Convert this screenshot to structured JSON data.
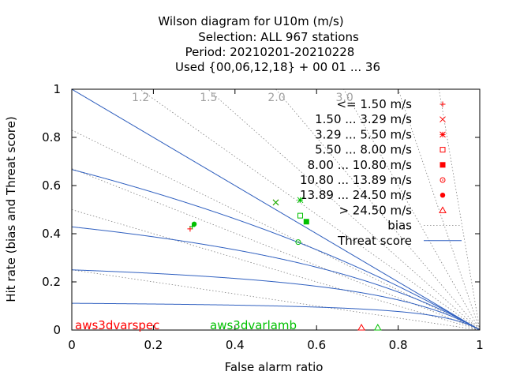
{
  "chart_data": {
    "type": "scatter",
    "title_lines": [
      "Wilson diagram  for U10m (m/s)",
      "Selection: ALL    967 stations",
      "Period: 20210201-20210228",
      "Used {00,06,12,18} + 00 01 ... 36"
    ],
    "xlabel": "False alarm ratio",
    "ylabel": "Hit rate (bias and Threat score)",
    "xlim": [
      0,
      1
    ],
    "ylim": [
      0,
      1
    ],
    "x_ticks": [
      "0",
      "0.2",
      "0.4",
      "0.6",
      "0.8",
      "1"
    ],
    "y_ticks": [
      "0",
      "0.2",
      "0.4",
      "0.6",
      "0.8",
      "1"
    ],
    "bias_values": [
      0.25,
      0.5,
      0.67,
      0.83,
      1.0,
      1.2,
      1.5,
      2.0,
      3.0,
      5.0,
      10.0
    ],
    "bias_labels": [
      "1.2",
      "1.5",
      "2.0",
      "3.0"
    ],
    "threat_score_values": [
      0.1,
      0.2,
      0.3,
      0.4,
      0.5,
      0.6,
      0.7
    ],
    "legend_position": "top-right",
    "legend": [
      {
        "label": "<= 1.50 m/s",
        "marker": "plus"
      },
      {
        "label": "1.50 ... 3.29 m/s",
        "marker": "cross"
      },
      {
        "label": "3.29 ... 5.50 m/s",
        "marker": "star"
      },
      {
        "label": "5.50 ... 8.00 m/s",
        "marker": "square-open"
      },
      {
        "label": "8.00 ... 10.80 m/s",
        "marker": "square-filled"
      },
      {
        "label": "10.80 ... 13.89 m/s",
        "marker": "circle-open"
      },
      {
        "label": "13.89 ... 24.50 m/s",
        "marker": "circle-filled"
      },
      {
        "label": "> 24.50 m/s",
        "marker": "triangle-open"
      },
      {
        "label": "bias",
        "marker": "dotted-line"
      },
      {
        "label": "Threat score",
        "marker": "solid-line"
      }
    ],
    "series": [
      {
        "name": "aws3dvarspec",
        "color": "#ff0000",
        "points": [
          {
            "x": 0.29,
            "y": 0.42,
            "marker": "plus"
          },
          {
            "x": 0.5,
            "y": 0.53,
            "marker": "cross"
          },
          {
            "x": 0.71,
            "y": 0.01,
            "marker": "triangle-open"
          }
        ]
      },
      {
        "name": "aws3dvarlamb",
        "color": "#00c000",
        "points": [
          {
            "x": 0.295,
            "y": 0.43,
            "marker": "plus"
          },
          {
            "x": 0.5,
            "y": 0.53,
            "marker": "cross"
          },
          {
            "x": 0.56,
            "y": 0.54,
            "marker": "star"
          },
          {
            "x": 0.56,
            "y": 0.475,
            "marker": "square-open"
          },
          {
            "x": 0.575,
            "y": 0.45,
            "marker": "square-filled"
          },
          {
            "x": 0.555,
            "y": 0.365,
            "marker": "circle-open"
          },
          {
            "x": 0.3,
            "y": 0.44,
            "marker": "circle-filled"
          },
          {
            "x": 0.75,
            "y": 0.01,
            "marker": "triangle-open"
          }
        ]
      }
    ],
    "colors": {
      "threat_line": "#3060c0",
      "bias_line": "#808080",
      "bias_label": "#a0a0a0",
      "legend_marker": "#ff0000",
      "axis": "#000000"
    }
  }
}
